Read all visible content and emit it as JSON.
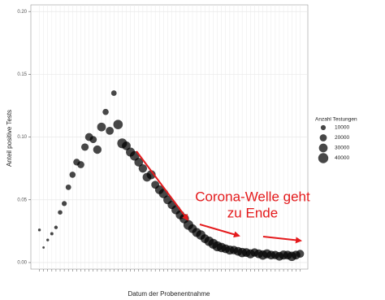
{
  "chart_data": {
    "type": "scatter",
    "xlabel": "Datum der Probenentnahme",
    "ylabel": "Anteil positive Tests",
    "legend_title": "Anzahl Testungen",
    "legend_position": "right",
    "legend_sizes": [
      10000,
      20000,
      30000,
      40000
    ],
    "annotations": [
      "Corona-Welle geht",
      "zu Ende"
    ],
    "annotation_color": "#e41a1c",
    "color": "#000000",
    "grid": true,
    "ylim": [
      -0.0052,
      0.2053
    ],
    "yticks": [
      {
        "value": 0,
        "label": "0.00"
      },
      {
        "value": 0.05,
        "label": "0.05"
      },
      {
        "value": 0.1,
        "label": "0.10"
      },
      {
        "value": 0.15,
        "label": "0.15"
      },
      {
        "value": 0.2,
        "label": "0.20"
      }
    ],
    "categories": [
      null,
      null,
      null,
      null,
      null,
      null,
      null,
      null,
      null,
      null,
      null,
      null,
      null,
      null,
      null,
      null,
      null,
      null,
      null,
      null,
      null,
      null,
      null,
      null,
      null,
      null,
      null,
      null,
      null,
      null,
      null,
      null,
      null,
      null,
      null,
      null,
      null,
      null,
      null,
      null,
      null,
      null,
      null,
      null,
      null,
      null,
      null,
      null,
      null,
      null,
      null,
      null,
      null,
      null,
      null,
      null,
      null,
      null,
      null,
      null,
      null,
      null,
      null,
      null
    ],
    "values": [
      0.026,
      0.012,
      0.018,
      0.023,
      0.028,
      0.04,
      0.047,
      0.06,
      0.07,
      0.08,
      0.078,
      0.092,
      0.1,
      0.098,
      0.09,
      0.108,
      0.12,
      0.105,
      0.135,
      0.11,
      0.095,
      0.093,
      0.088,
      0.085,
      0.08,
      0.075,
      0.068,
      0.07,
      0.062,
      0.058,
      0.055,
      0.05,
      0.046,
      0.042,
      0.038,
      0.035,
      0.03,
      0.027,
      0.024,
      0.022,
      0.019,
      0.017,
      0.015,
      0.013,
      0.012,
      0.011,
      0.01,
      0.01,
      0.009,
      0.008,
      0.008,
      0.007,
      0.008,
      0.007,
      0.006,
      0.007,
      0.006,
      0.006,
      0.005,
      0.006,
      0.006,
      0.005,
      0.006,
      0.007
    ],
    "sizes": [
      3000,
      2000,
      3000,
      4000,
      5000,
      8000,
      10000,
      12000,
      15000,
      18000,
      20000,
      22000,
      25000,
      20000,
      28000,
      30000,
      15000,
      25000,
      12000,
      35000,
      38000,
      30000,
      32000,
      35000,
      30000,
      28000,
      30000,
      32000,
      25000,
      30000,
      35000,
      30000,
      28000,
      32000,
      30000,
      35000,
      38000,
      30000,
      32000,
      35000,
      30000,
      35000,
      38000,
      40000,
      35000,
      30000,
      32000,
      28000,
      30000,
      35000,
      30000,
      32000,
      28000,
      30000,
      35000,
      32000,
      30000,
      28000,
      30000,
      32000,
      30000,
      35000,
      30000,
      25000
    ]
  }
}
